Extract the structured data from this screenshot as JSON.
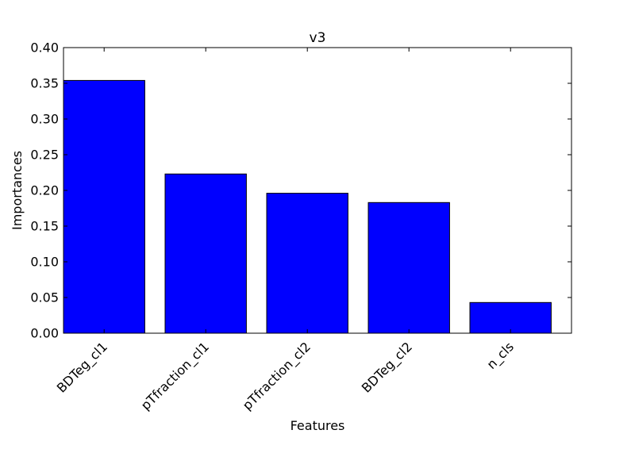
{
  "chart_data": {
    "type": "bar",
    "title": "v3",
    "xlabel": "Features",
    "ylabel": "Importances",
    "categories": [
      "BDTeg_cl1",
      "pTfraction_cl1",
      "pTfraction_cl2",
      "BDTeg_cl2",
      "n_cls"
    ],
    "values": [
      0.354,
      0.223,
      0.196,
      0.183,
      0.043
    ],
    "ylim": [
      0,
      0.4
    ],
    "yticks": [
      "0.00",
      "0.05",
      "0.10",
      "0.15",
      "0.20",
      "0.25",
      "0.30",
      "0.35",
      "0.40"
    ],
    "grid": false,
    "bar_color": "#0000ff",
    "edge_color": "#000000"
  }
}
